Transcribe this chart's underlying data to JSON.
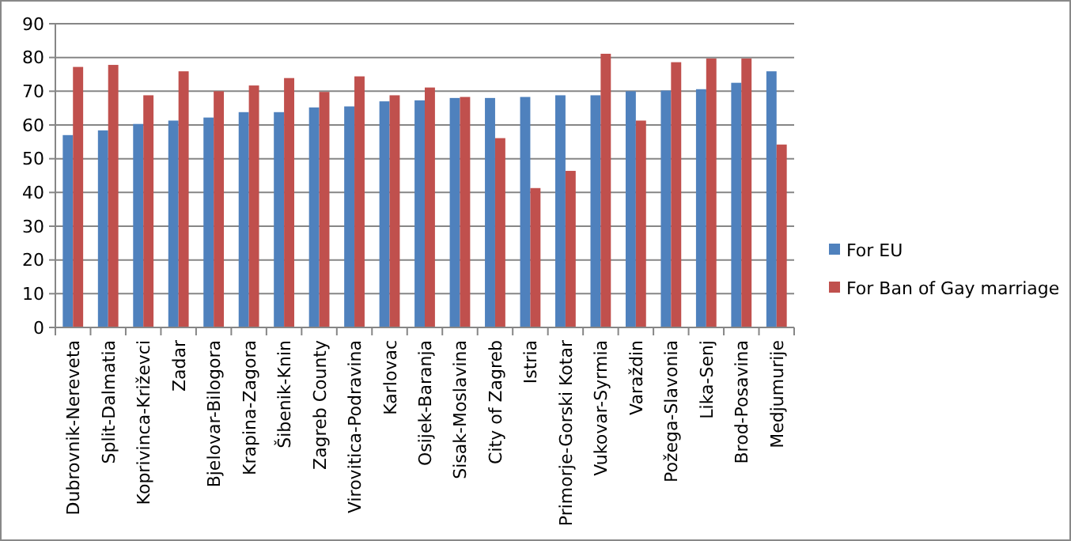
{
  "chart_data": {
    "type": "bar",
    "categories": [
      "Dubrovnik-Nereveta",
      "Split-Dalmatia",
      "Koprivinca-Križevci",
      "Zadar",
      "Bjelovar-Bilogora",
      "Krapina-Zagora",
      "Šibenik-Knin",
      "Zagreb County",
      "Virovitica-Podravina",
      "Karlovac",
      "Osijek-Baranja",
      "Sisak-Moslavina",
      "City of Zagreb",
      "Istria",
      "Primorje-Gorski Kotar",
      "Vukovar-Syrmia",
      "Varaždin",
      "Požega-Slavonia",
      "Lika-Senj",
      "Brod-Posavina",
      "Medjumurije"
    ],
    "series": [
      {
        "name": "For EU",
        "color": "#4f81bd",
        "values": [
          57,
          58.4,
          60.3,
          61.3,
          62.2,
          63.8,
          63.8,
          65.2,
          65.5,
          67,
          67.3,
          68,
          68,
          68.3,
          68.8,
          68.8,
          70,
          70.2,
          70.6,
          72.5,
          75.9
        ]
      },
      {
        "name": "For Ban of Gay marriage",
        "color": "#c0504d",
        "values": [
          77.2,
          77.8,
          68.8,
          75.9,
          70,
          71.7,
          73.9,
          69.8,
          74.4,
          68.8,
          71.1,
          68.3,
          56.1,
          41.3,
          46.4,
          81.1,
          61.3,
          78.6,
          79.7,
          79.7,
          54.2
        ]
      }
    ],
    "ylim": [
      0,
      90
    ],
    "yticks": [
      0,
      10,
      20,
      30,
      40,
      50,
      60,
      70,
      80,
      90
    ],
    "grid": "y",
    "legend": "right"
  }
}
